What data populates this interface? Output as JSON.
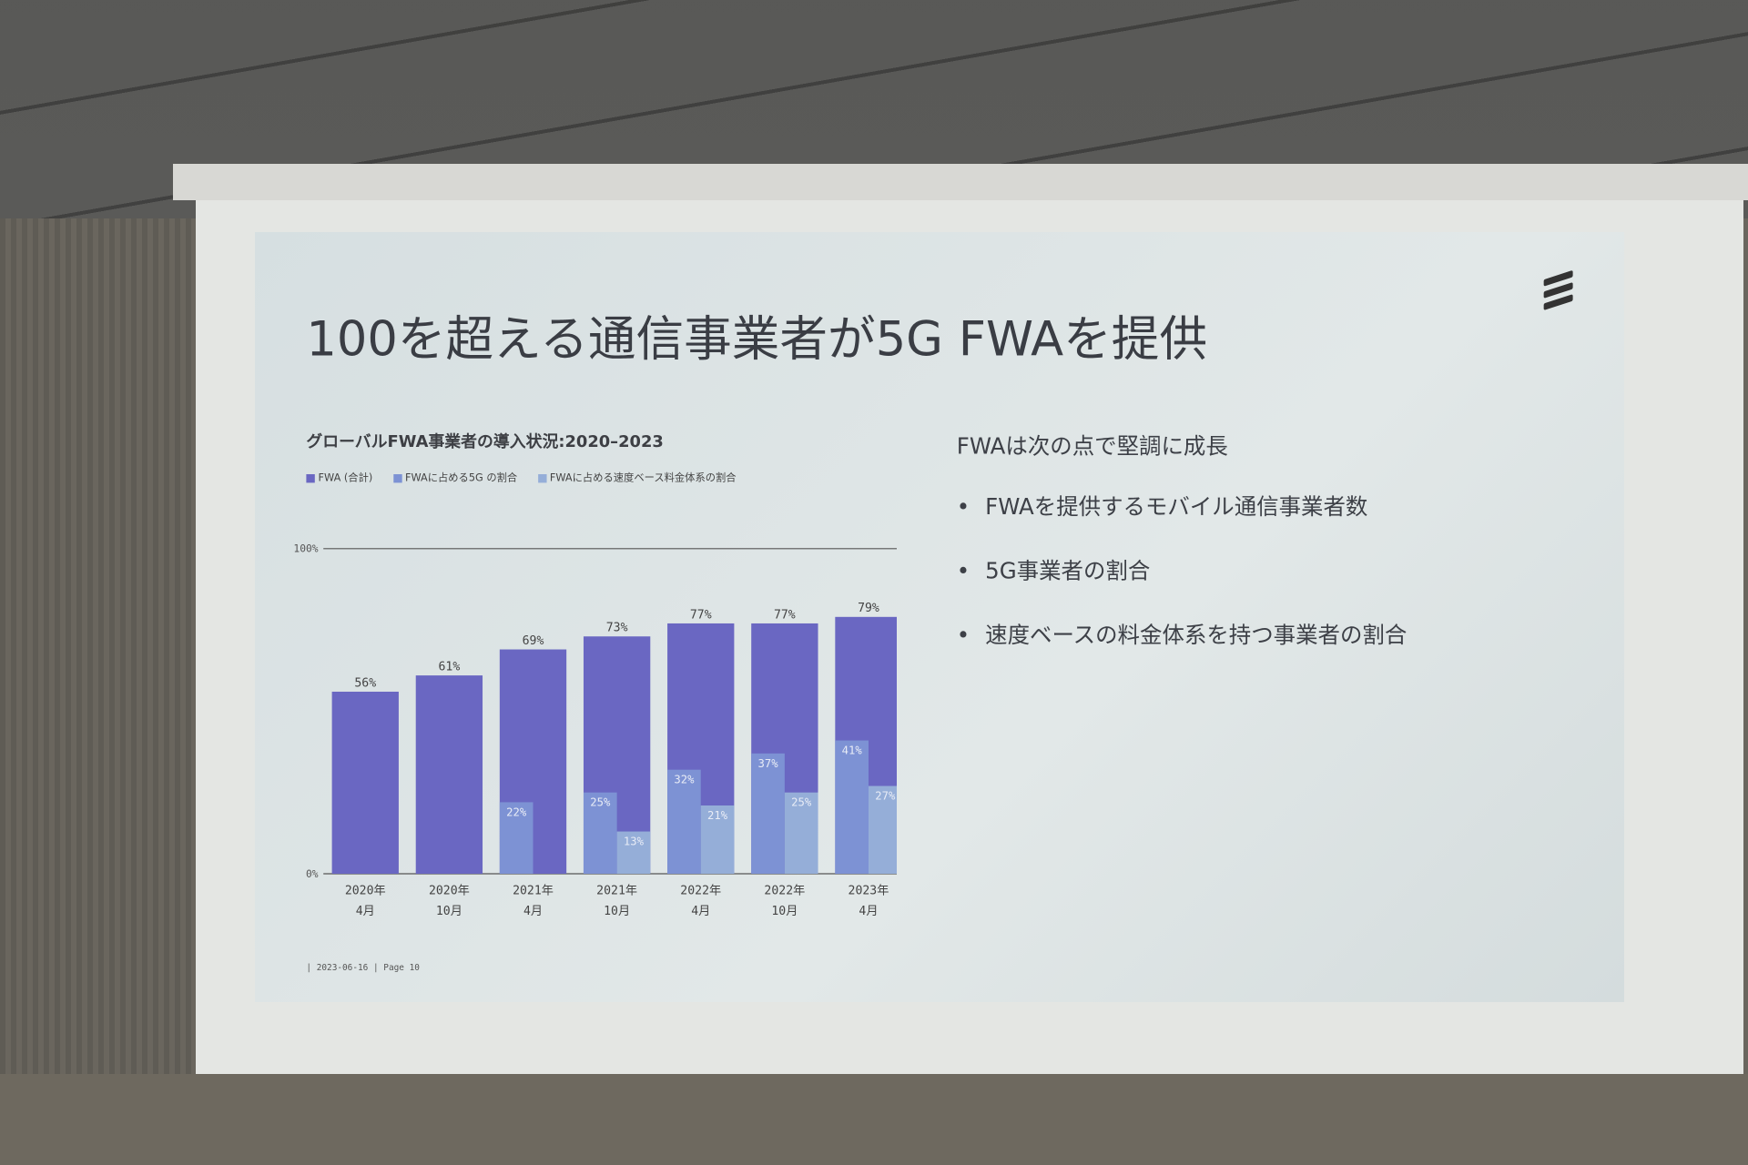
{
  "slide": {
    "title": "100を超える通信事業者が5G FWAを提供",
    "footer": "| 2023-06-16 | Page 10",
    "right": {
      "lead": "FWAは次の点で堅調に成長",
      "bullets": [
        "FWAを提供するモバイル通信事業者数",
        "5G事業者の割合",
        "速度ベースの料金体系を持つ事業者の割合"
      ]
    }
  },
  "colors": {
    "total": "#6a67c2",
    "fiveg": "#7d92d4",
    "speed": "#95aed8",
    "background": "#dfe6e7"
  },
  "chart_data": {
    "type": "bar",
    "title": "グローバルFWA事業者の導入状況:2020–2023",
    "legend": [
      "FWA (合計)",
      "FWAに占める5G の割合",
      "FWAに占める速度ベース料金体系の割合"
    ],
    "legend_position": "top-left",
    "categories": [
      [
        "2020年",
        "4月"
      ],
      [
        "2020年",
        "10月"
      ],
      [
        "2021年",
        "4月"
      ],
      [
        "2021年",
        "10月"
      ],
      [
        "2022年",
        "4月"
      ],
      [
        "2022年",
        "10月"
      ],
      [
        "2023年",
        "4月"
      ]
    ],
    "series": [
      {
        "name": "FWA (合計)",
        "values": [
          56,
          61,
          69,
          73,
          77,
          77,
          79
        ]
      },
      {
        "name": "FWAに占める5G の割合",
        "values": [
          null,
          null,
          22,
          25,
          32,
          37,
          41
        ]
      },
      {
        "name": "FWAに占める速度ベース料金体系の割合",
        "values": [
          null,
          null,
          null,
          13,
          21,
          25,
          27
        ]
      }
    ],
    "ytick_labels": [
      "0%",
      "100%"
    ],
    "ylim": [
      0,
      100
    ],
    "grid": false
  }
}
